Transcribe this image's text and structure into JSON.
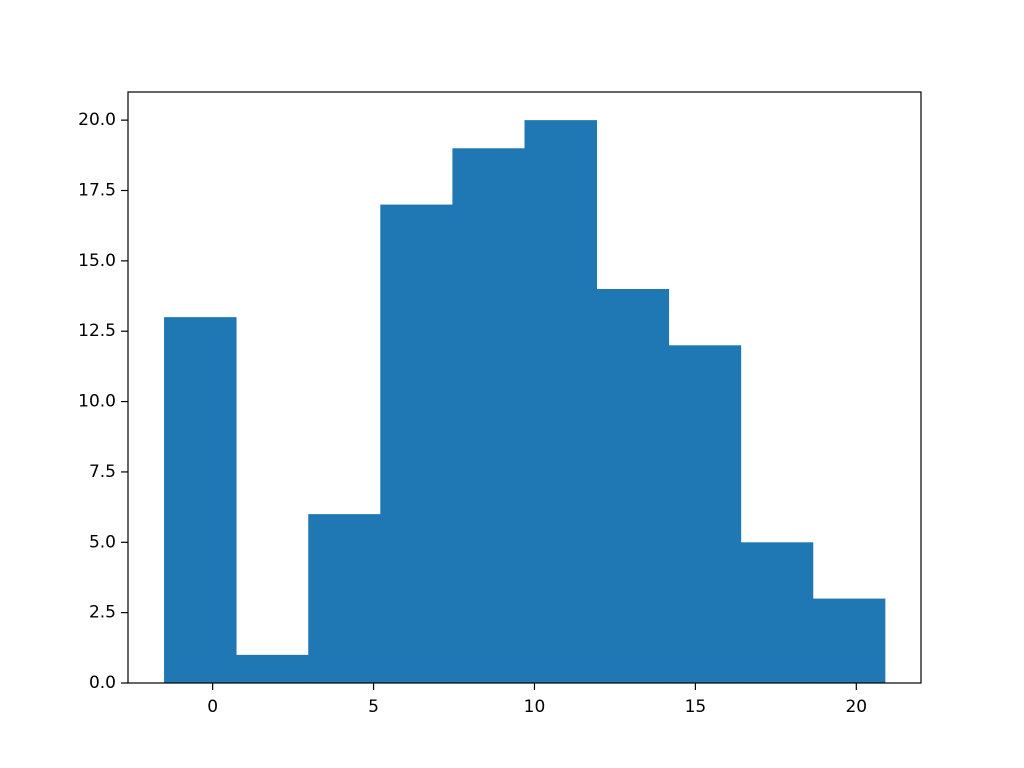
{
  "chart_data": {
    "type": "bar",
    "bin_edges": [
      -1.51,
      0.73,
      2.97,
      5.21,
      7.45,
      9.69,
      11.93,
      14.17,
      16.41,
      18.65,
      20.89
    ],
    "values": [
      13,
      1,
      6,
      17,
      19,
      20,
      14,
      12,
      5,
      3
    ],
    "xlim": [
      -2.63,
      22.01
    ],
    "ylim": [
      0,
      21
    ],
    "x_ticks": [
      0,
      5,
      10,
      15,
      20
    ],
    "x_tick_labels": [
      "0",
      "5",
      "10",
      "15",
      "20"
    ],
    "y_ticks": [
      0,
      2.5,
      5,
      7.5,
      10,
      12.5,
      15,
      17.5,
      20
    ],
    "y_tick_labels": [
      "0.0",
      "2.5",
      "5.0",
      "7.5",
      "10.0",
      "12.5",
      "15.0",
      "17.5",
      "20.0"
    ],
    "title": "",
    "xlabel": "",
    "ylabel": "",
    "grid": false,
    "bar_color": "#1f77b4"
  }
}
